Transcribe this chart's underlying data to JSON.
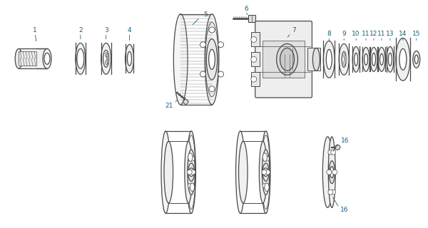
{
  "bg_color": "#ffffff",
  "line_color": "#4a4a4a",
  "label_color": "#1a5f7a",
  "fig_width": 6.0,
  "fig_height": 3.2,
  "dpi": 100
}
